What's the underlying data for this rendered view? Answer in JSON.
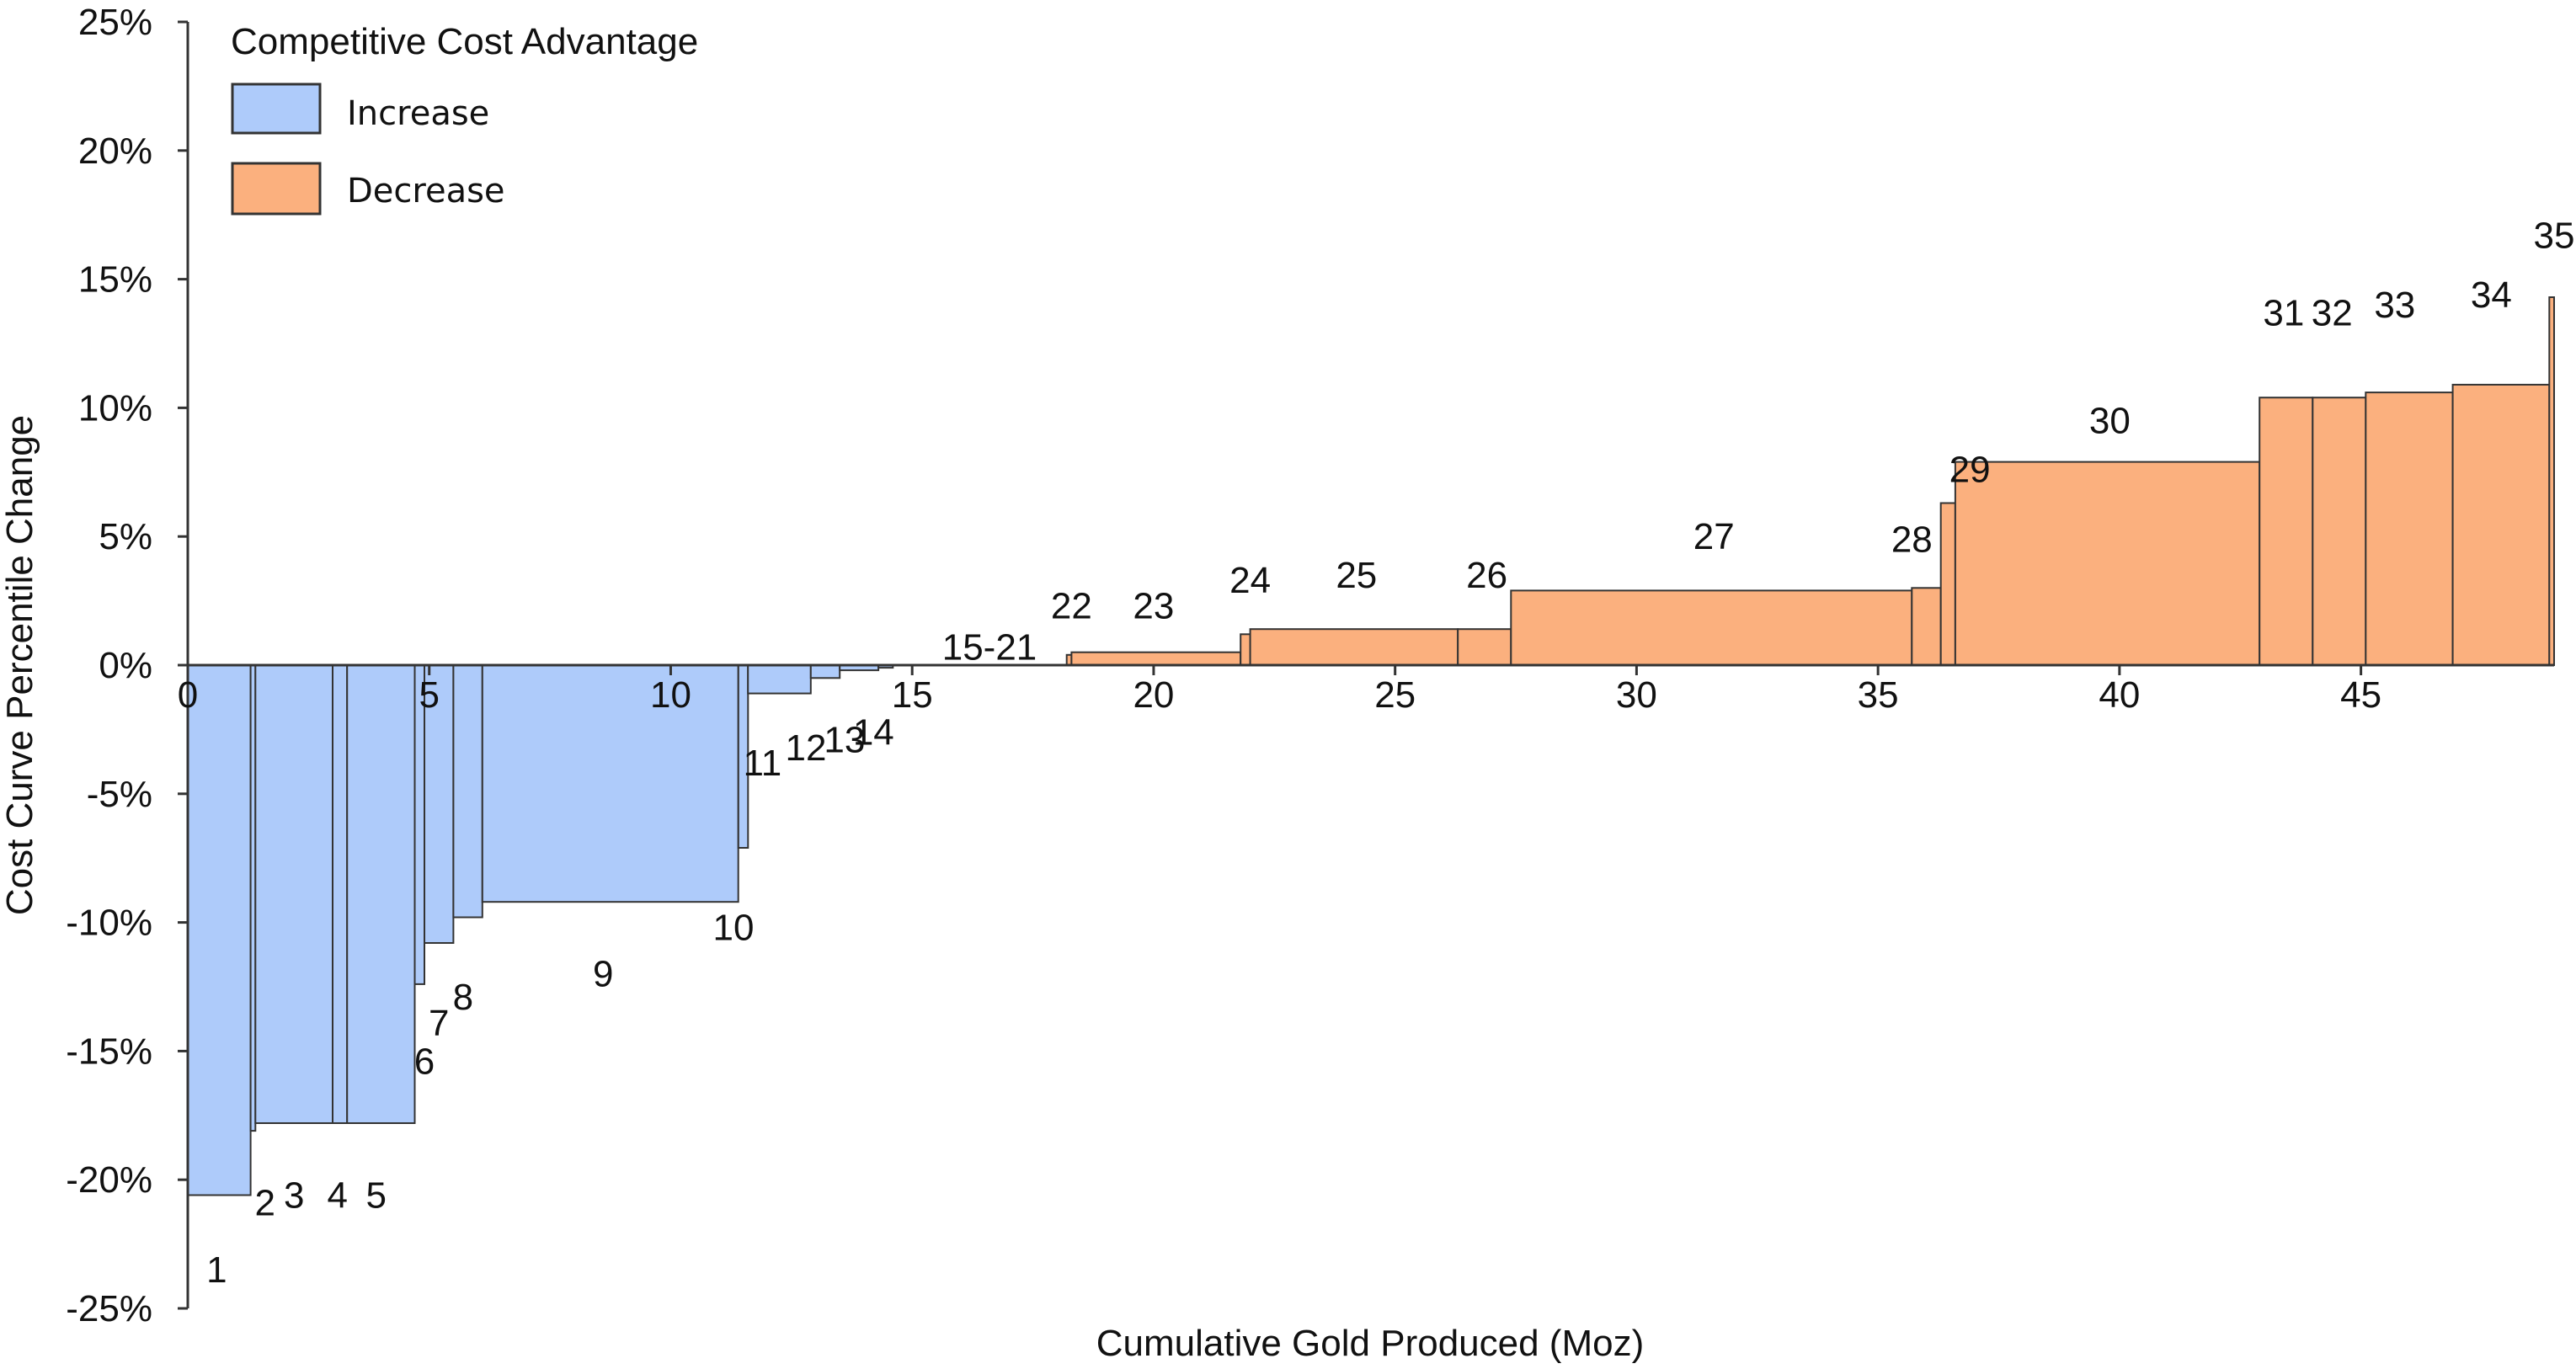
{
  "chart_data": {
    "type": "bar",
    "subtype": "variable-width cost curve",
    "xlabel": "Cumulative Gold Produced (Moz)",
    "ylabel": "Cost Curve Percentile Change",
    "xlim": [
      0,
      49
    ],
    "ylim": [
      -25,
      25
    ],
    "x_ticks": [
      "0",
      "5",
      "10",
      "15",
      "20",
      "25",
      "30",
      "35",
      "40",
      "45"
    ],
    "y_ticks": [
      "25%",
      "20%",
      "15%",
      "10%",
      "5%",
      "0%",
      "-5%",
      "-10%",
      "-15%",
      "-20%",
      "-25%"
    ],
    "y_tick_values": [
      25,
      20,
      15,
      10,
      5,
      0,
      -5,
      -10,
      -15,
      -20,
      -25
    ],
    "legend": {
      "title": "Competitive Cost Advantage",
      "position": "top-left",
      "entries": [
        {
          "label": "Increase",
          "color": "#aecbfa"
        },
        {
          "label": "Decrease",
          "color": "#fbb07e"
        }
      ]
    },
    "colors": {
      "increase": "#aecbfa",
      "decrease": "#fbb07e",
      "axis": "#333333"
    },
    "bars": [
      {
        "id": "1",
        "x0": 0.0,
        "x1": 1.3,
        "value": -20.6,
        "group": "increase"
      },
      {
        "id": "2",
        "x0": 1.3,
        "x1": 1.4,
        "value": -18.1,
        "group": "increase"
      },
      {
        "id": "3",
        "x0": 1.4,
        "x1": 3.0,
        "value": -17.8,
        "group": "increase"
      },
      {
        "id": "4",
        "x0": 3.0,
        "x1": 3.3,
        "value": -17.8,
        "group": "increase"
      },
      {
        "id": "5",
        "x0": 3.3,
        "x1": 4.7,
        "value": -17.8,
        "group": "increase"
      },
      {
        "id": "6",
        "x0": 4.7,
        "x1": 4.9,
        "value": -12.4,
        "group": "increase"
      },
      {
        "id": "7",
        "x0": 4.9,
        "x1": 5.5,
        "value": -10.8,
        "group": "increase"
      },
      {
        "id": "8",
        "x0": 5.5,
        "x1": 6.1,
        "value": -9.8,
        "group": "increase"
      },
      {
        "id": "9",
        "x0": 6.1,
        "x1": 11.4,
        "value": -9.2,
        "group": "increase"
      },
      {
        "id": "10",
        "x0": 11.4,
        "x1": 11.6,
        "value": -7.1,
        "group": "increase"
      },
      {
        "id": "11",
        "x0": 11.6,
        "x1": 12.9,
        "value": -1.1,
        "group": "increase"
      },
      {
        "id": "12",
        "x0": 12.9,
        "x1": 13.5,
        "value": -0.5,
        "group": "increase"
      },
      {
        "id": "13",
        "x0": 13.5,
        "x1": 14.3,
        "value": -0.2,
        "group": "increase"
      },
      {
        "id": "14",
        "x0": 14.3,
        "x1": 14.6,
        "value": -0.1,
        "group": "increase"
      },
      {
        "id": "15-21",
        "x0": 14.6,
        "x1": 18.2,
        "value": 0.0,
        "group": "none"
      },
      {
        "id": "22",
        "x0": 18.2,
        "x1": 18.3,
        "value": 0.4,
        "group": "decrease"
      },
      {
        "id": "23",
        "x0": 18.3,
        "x1": 21.8,
        "value": 0.5,
        "group": "decrease"
      },
      {
        "id": "24",
        "x0": 21.8,
        "x1": 22.0,
        "value": 1.2,
        "group": "decrease"
      },
      {
        "id": "25",
        "x0": 22.0,
        "x1": 26.3,
        "value": 1.4,
        "group": "decrease"
      },
      {
        "id": "26",
        "x0": 26.3,
        "x1": 27.4,
        "value": 1.4,
        "group": "decrease"
      },
      {
        "id": "27",
        "x0": 27.4,
        "x1": 35.7,
        "value": 2.9,
        "group": "decrease"
      },
      {
        "id": "28",
        "x0": 35.7,
        "x1": 36.3,
        "value": 3.0,
        "group": "decrease"
      },
      {
        "id": "29",
        "x0": 36.3,
        "x1": 36.6,
        "value": 6.3,
        "group": "decrease"
      },
      {
        "id": "30",
        "x0": 36.6,
        "x1": 42.9,
        "value": 7.9,
        "group": "decrease"
      },
      {
        "id": "31",
        "x0": 42.9,
        "x1": 44.0,
        "value": 10.4,
        "group": "decrease"
      },
      {
        "id": "32",
        "x0": 44.0,
        "x1": 45.1,
        "value": 10.4,
        "group": "decrease"
      },
      {
        "id": "33",
        "x0": 45.1,
        "x1": 46.9,
        "value": 10.6,
        "group": "decrease"
      },
      {
        "id": "34",
        "x0": 46.9,
        "x1": 48.9,
        "value": 10.9,
        "group": "decrease"
      },
      {
        "id": "35",
        "x0": 48.9,
        "x1": 49.0,
        "value": 14.3,
        "group": "decrease"
      }
    ],
    "labels": [
      {
        "text": "1",
        "x": 0.6,
        "y": -23.5
      },
      {
        "text": "2",
        "x": 1.6,
        "y": -20.9
      },
      {
        "text": "3",
        "x": 2.2,
        "y": -20.6
      },
      {
        "text": "4",
        "x": 3.1,
        "y": -20.6
      },
      {
        "text": "5",
        "x": 3.9,
        "y": -20.6
      },
      {
        "text": "6",
        "x": 4.9,
        "y": -15.4
      },
      {
        "text": "7",
        "x": 5.2,
        "y": -13.9
      },
      {
        "text": "8",
        "x": 5.7,
        "y": -12.9
      },
      {
        "text": "9",
        "x": 8.6,
        "y": -12.0
      },
      {
        "text": "10",
        "x": 11.3,
        "y": -10.2
      },
      {
        "text": "11",
        "x": 11.9,
        "y": -3.8
      },
      {
        "text": "12",
        "x": 12.8,
        "y": -3.2
      },
      {
        "text": "13",
        "x": 13.6,
        "y": -2.9
      },
      {
        "text": "14",
        "x": 14.2,
        "y": -2.6
      },
      {
        "text": "15-21",
        "x": 16.6,
        "y": 0.7
      },
      {
        "text": "22",
        "x": 18.3,
        "y": 2.3
      },
      {
        "text": "23",
        "x": 20.0,
        "y": 2.3
      },
      {
        "text": "24",
        "x": 22.0,
        "y": 3.3
      },
      {
        "text": "25",
        "x": 24.2,
        "y": 3.5
      },
      {
        "text": "26",
        "x": 26.9,
        "y": 3.5
      },
      {
        "text": "27",
        "x": 31.6,
        "y": 5.0
      },
      {
        "text": "28",
        "x": 35.7,
        "y": 4.9
      },
      {
        "text": "29",
        "x": 36.9,
        "y": 7.6
      },
      {
        "text": "30",
        "x": 39.8,
        "y": 9.5
      },
      {
        "text": "31",
        "x": 43.4,
        "y": 13.7
      },
      {
        "text": "32",
        "x": 44.4,
        "y": 13.7
      },
      {
        "text": "33",
        "x": 45.7,
        "y": 14.0
      },
      {
        "text": "34",
        "x": 47.7,
        "y": 14.4
      },
      {
        "text": "35",
        "x": 49.0,
        "y": 16.7
      }
    ]
  }
}
